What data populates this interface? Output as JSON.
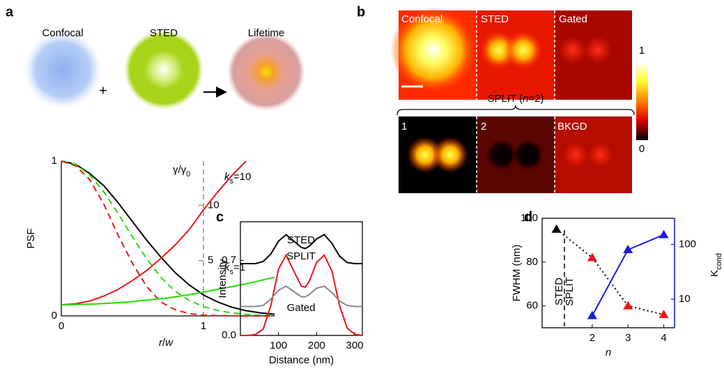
{
  "panel_labels": [
    "a",
    "b",
    "c",
    "d"
  ],
  "diagram": {
    "labels": [
      "Confocal",
      "STED",
      "Lifetime"
    ],
    "plus": "+"
  },
  "images": {
    "top": [
      "Confocal",
      "STED",
      "Gated"
    ],
    "bottom": [
      "1",
      "2",
      "BKGD"
    ],
    "brace": [
      "SPLIT (",
      "n",
      "=2)"
    ],
    "colorbar_ticks": [
      1,
      0
    ]
  },
  "chart_data": [
    {
      "type": "line",
      "ylabel": "PSF",
      "xlabel": [
        "r",
        "/",
        "w"
      ],
      "y2label": [
        "γ/γ",
        "0"
      ],
      "x": [
        0,
        0.1,
        0.2,
        0.3,
        0.4,
        0.5,
        0.6,
        0.7,
        0.8,
        0.9,
        1.0,
        1.1,
        1.2,
        1.3,
        1.4,
        1.5
      ],
      "xlim": [
        0,
        1.5
      ],
      "xticks": [
        0,
        1
      ],
      "ylim": [
        0,
        1
      ],
      "yticks": [
        0,
        1
      ],
      "y2lim": [
        0,
        14
      ],
      "y2ticks": [
        5,
        10
      ],
      "series": [
        {
          "color": "#000000",
          "line_style": "solid",
          "values": [
            1,
            0.98,
            0.92,
            0.84,
            0.73,
            0.61,
            0.49,
            0.38,
            0.28,
            0.2,
            0.135,
            0.09,
            0.056,
            0.034,
            0.02,
            0.011
          ]
        },
        {
          "color": "#22dd00",
          "line_style": "dashed",
          "values": [
            1,
            0.98,
            0.91,
            0.8,
            0.66,
            0.51,
            0.37,
            0.25,
            0.16,
            0.1,
            0.06,
            0.035,
            0.02,
            0.01,
            0.005,
            0.003
          ]
        },
        {
          "color": "#e8141b",
          "line_style": "dashed",
          "values": [
            1,
            0.97,
            0.88,
            0.72,
            0.52,
            0.34,
            0.19,
            0.09,
            0.04,
            0.015,
            0.005,
            0.002,
            0.001,
            0,
            0,
            0
          ]
        },
        {
          "color": "#e8141b",
          "line_style": "solid",
          "axis": "y2",
          "values": [
            1,
            1.1,
            1.35,
            1.8,
            2.4,
            3.2,
            4.1,
            5.2,
            6.4,
            7.8,
            9.6,
            11.2,
            12.7,
            14,
            null,
            null
          ]
        },
        {
          "color": "#22dd00",
          "line_style": "solid",
          "axis": "y2",
          "values": [
            1,
            1.02,
            1.06,
            1.12,
            1.2,
            1.3,
            1.42,
            1.56,
            1.72,
            1.92,
            2.15,
            2.4,
            2.65,
            2.9,
            3.2,
            3.5
          ]
        }
      ],
      "annotations": [
        {
          "parts": [
            "k",
            "s",
            "=10"
          ],
          "color": "#e8141b"
        },
        {
          "parts": [
            "k",
            "s",
            "=1"
          ],
          "color": "#22dd00"
        }
      ]
    },
    {
      "type": "line",
      "ylabel": "Intensity",
      "xlabel": "Distance (nm)",
      "x": [
        0,
        20,
        40,
        60,
        80,
        100,
        120,
        140,
        160,
        170,
        180,
        200,
        220,
        240,
        260,
        280,
        300,
        320
      ],
      "xlim": [
        0,
        320
      ],
      "xticks": [
        100,
        200,
        300
      ],
      "ylim": [
        0,
        1.06
      ],
      "yticks": [
        {
          "value": 0,
          "label": "0.0"
        },
        0.7
      ],
      "series": [
        {
          "name": "STED",
          "color": "#000000",
          "line_style": "solid",
          "values": [
            0.67,
            0.67,
            0.67,
            0.69,
            0.76,
            0.88,
            0.94,
            0.88,
            0.82,
            0.81,
            0.83,
            0.9,
            0.94,
            0.86,
            0.74,
            0.68,
            0.67,
            0.67
          ]
        },
        {
          "name": "SPLIT",
          "color": "#e8141b",
          "line_style": "solid",
          "values": [
            0,
            0,
            0.01,
            0.06,
            0.28,
            0.62,
            0.75,
            0.6,
            0.46,
            0.45,
            0.5,
            0.68,
            0.75,
            0.6,
            0.28,
            0.07,
            0.01,
            0
          ]
        },
        {
          "name": "Gated",
          "color": "#888888",
          "line_style": "solid",
          "values": [
            0.27,
            0.27,
            0.27,
            0.28,
            0.34,
            0.42,
            0.46,
            0.41,
            0.36,
            0.36,
            0.38,
            0.44,
            0.46,
            0.4,
            0.32,
            0.28,
            0.27,
            0.27
          ]
        }
      ]
    },
    {
      "type": "line",
      "ylabel": "FWHM (nm)",
      "xlabel": "n",
      "y2label": [
        "K",
        "cond"
      ],
      "x": [
        1,
        2,
        3,
        4
      ],
      "xlim": [
        0.6,
        4.3
      ],
      "xticks": [
        2,
        3,
        4
      ],
      "ylim": [
        50,
        100
      ],
      "yticks": [
        60,
        80,
        100
      ],
      "y2lim": [
        3,
        300
      ],
      "y2ticks": [
        10,
        100
      ],
      "y2log": true,
      "y2color": "#1a1adf",
      "divider_labels": [
        "STED",
        "SPLIT"
      ],
      "series": [
        {
          "color": "#000000",
          "line_style": "dotted",
          "marker": "triangle",
          "marker_colors": [
            "#000000",
            "#e8141b",
            "#e8141b",
            "#e8141b"
          ],
          "values": [
            95,
            82,
            60,
            56
          ]
        },
        {
          "color": "#1a1adf",
          "line_style": "solid",
          "axis": "y2",
          "marker": "triangle",
          "marker_colors": [
            "#1a1adf",
            "#1a1adf",
            "#1a1adf",
            "#1a1adf"
          ],
          "values": [
            null,
            5,
            80,
            150
          ]
        }
      ]
    }
  ]
}
